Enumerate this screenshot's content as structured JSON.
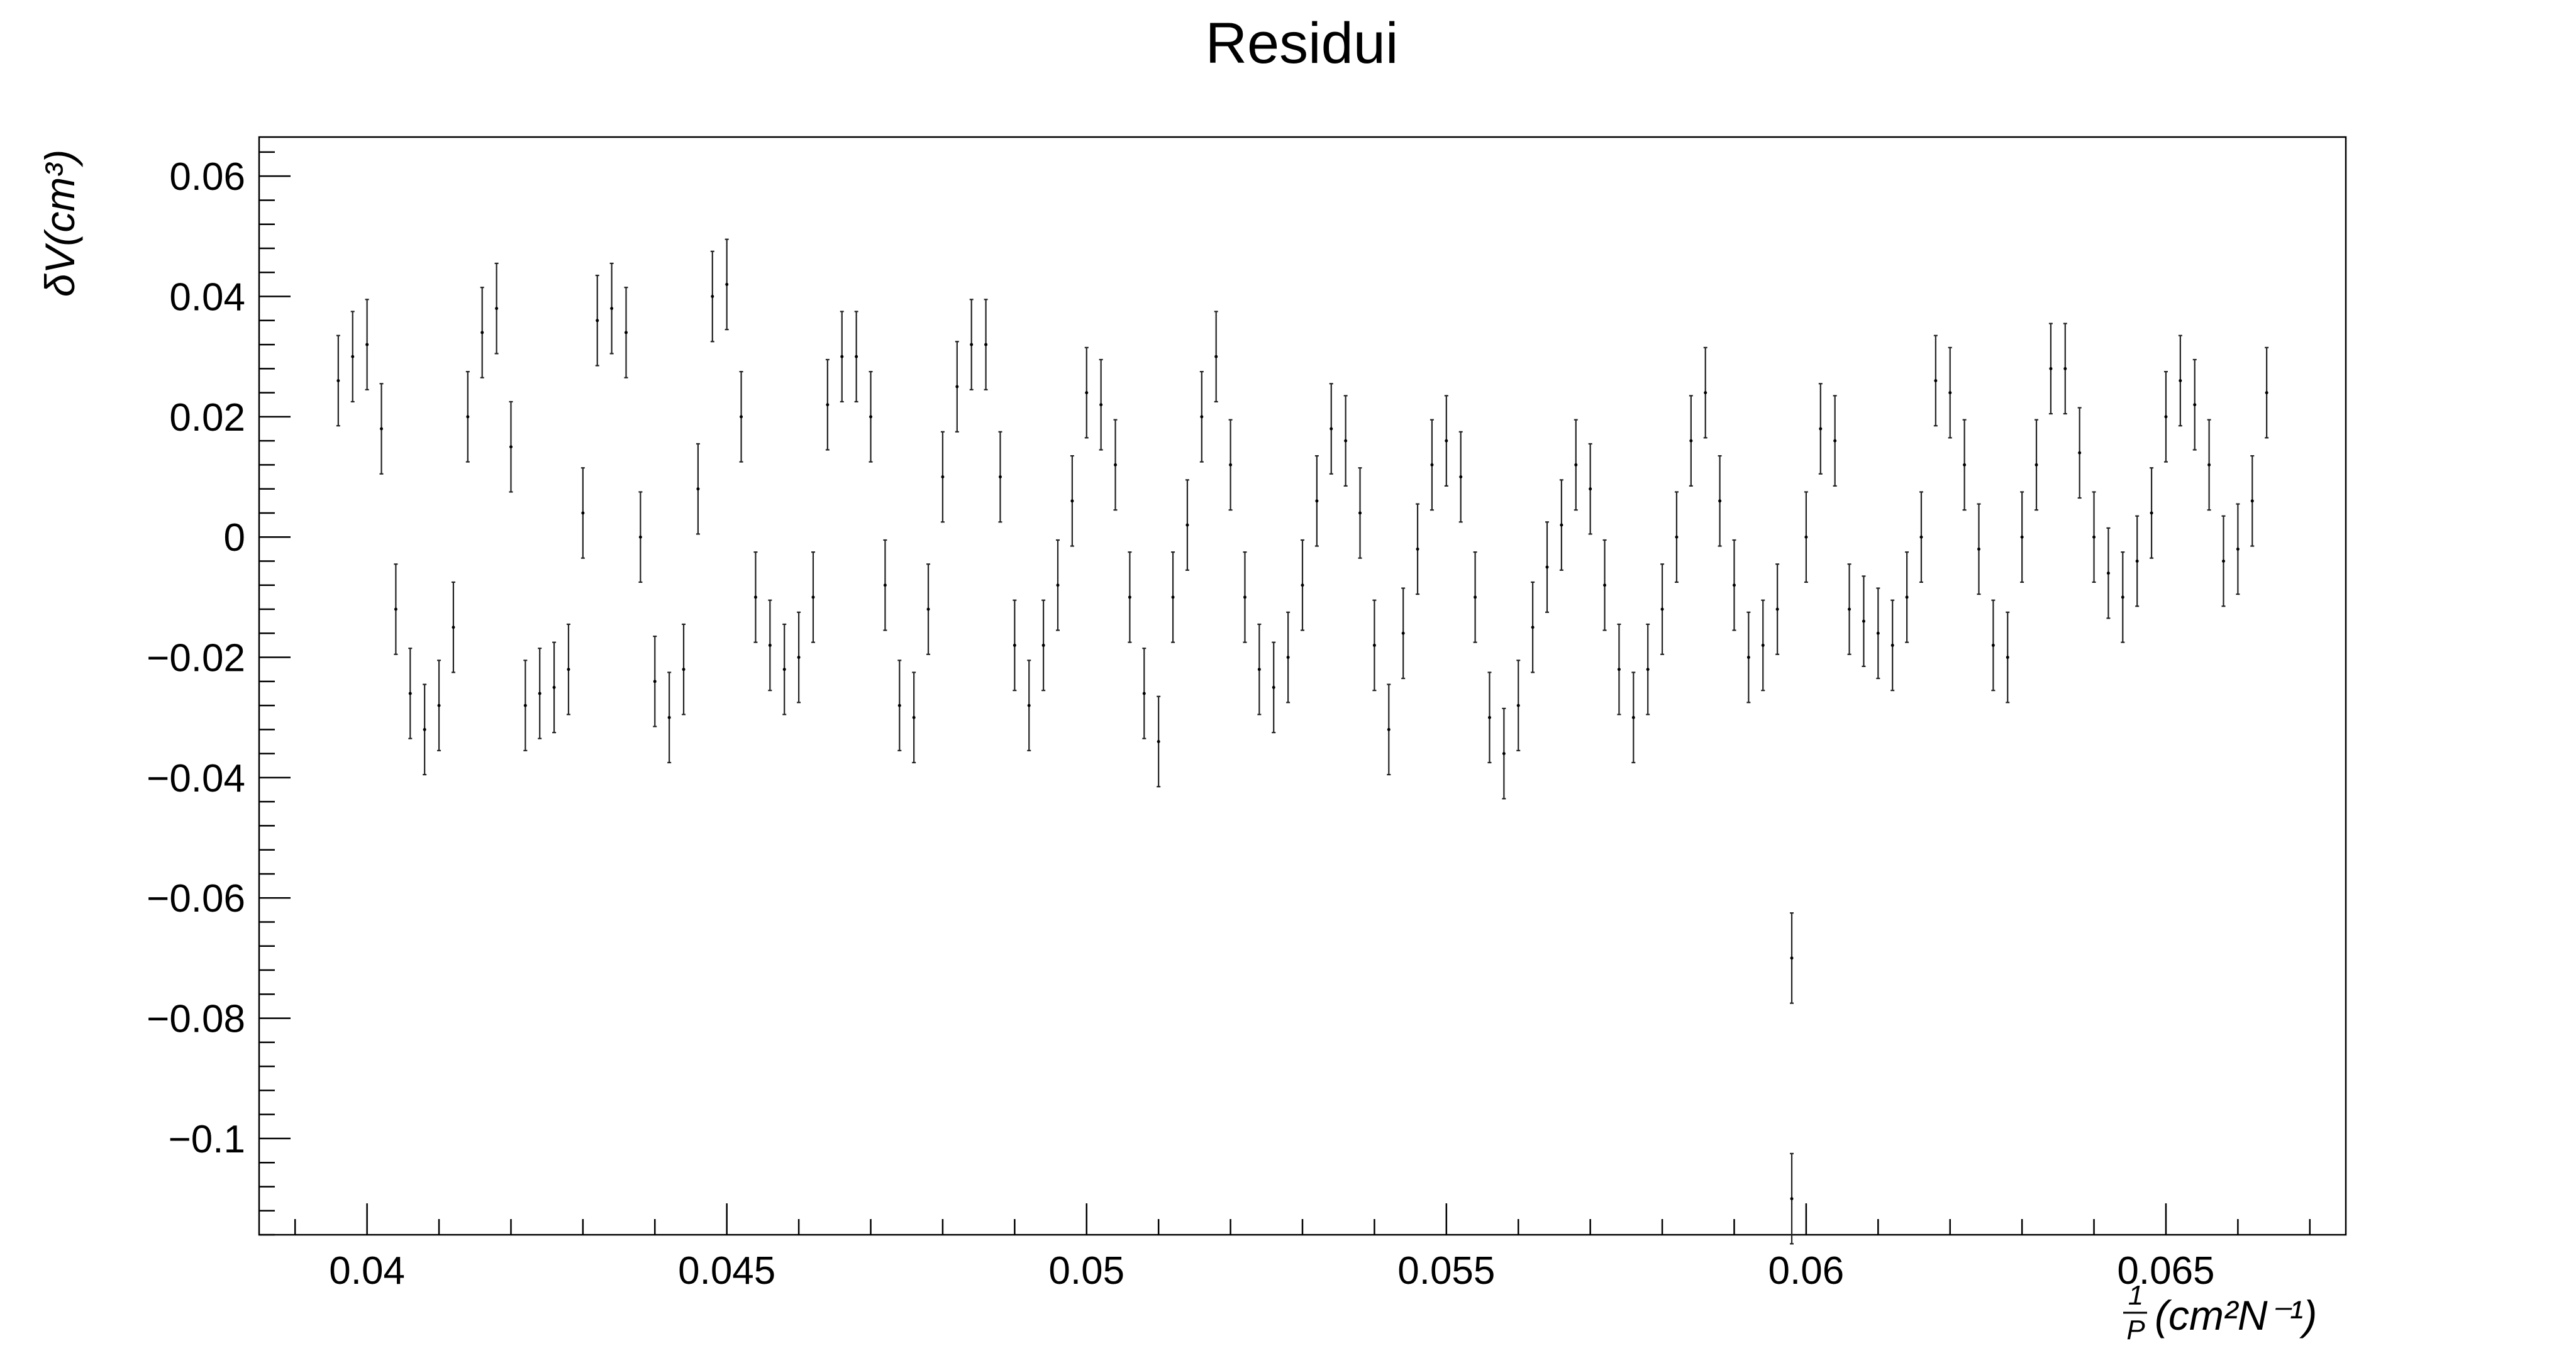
{
  "chart_data": {
    "type": "scatter",
    "title": "Residui",
    "ylabel": "δV(cm³)",
    "xlabel": {
      "frac_num": "1",
      "frac_den": "P",
      "rest": "(cm²N⁻¹)"
    },
    "xlim": [
      0.0385,
      0.0675
    ],
    "ylim": [
      -0.116,
      0.0665
    ],
    "x_ticks": [
      {
        "value": 0.04,
        "label": "0.04"
      },
      {
        "value": 0.045,
        "label": "0.045"
      },
      {
        "value": 0.05,
        "label": "0.05"
      },
      {
        "value": 0.055,
        "label": "0.055"
      },
      {
        "value": 0.06,
        "label": "0.06"
      },
      {
        "value": 0.065,
        "label": "0.065"
      }
    ],
    "y_ticks": [
      {
        "value": 0.06,
        "label": "0.06"
      },
      {
        "value": 0.04,
        "label": "0.04"
      },
      {
        "value": 0.02,
        "label": "0.02"
      },
      {
        "value": 0,
        "label": "0"
      },
      {
        "value": -0.02,
        "label": "−0.02"
      },
      {
        "value": -0.04,
        "label": "−0.04"
      },
      {
        "value": -0.06,
        "label": "−0.06"
      },
      {
        "value": -0.08,
        "label": "−0.08"
      },
      {
        "value": -0.1,
        "label": "−0.1"
      }
    ],
    "error_y": 0.0075,
    "grid": false,
    "series": [
      {
        "points": [
          [
            0.0396,
            0.026
          ],
          [
            0.0398,
            0.03
          ],
          [
            0.04,
            0.032
          ],
          [
            0.0402,
            0.018
          ],
          [
            0.0404,
            -0.012
          ],
          [
            0.0406,
            -0.026
          ],
          [
            0.0408,
            -0.032
          ],
          [
            0.041,
            -0.028
          ],
          [
            0.0412,
            -0.015
          ],
          [
            0.0414,
            0.02
          ],
          [
            0.0416,
            0.034
          ],
          [
            0.0418,
            0.038
          ],
          [
            0.042,
            0.015
          ],
          [
            0.0422,
            -0.028
          ],
          [
            0.0424,
            -0.026
          ],
          [
            0.0426,
            -0.025
          ],
          [
            0.0428,
            -0.022
          ],
          [
            0.043,
            0.004
          ],
          [
            0.0432,
            0.036
          ],
          [
            0.0434,
            0.038
          ],
          [
            0.0436,
            0.034
          ],
          [
            0.0438,
            0.0
          ],
          [
            0.044,
            -0.024
          ],
          [
            0.0442,
            -0.03
          ],
          [
            0.0444,
            -0.022
          ],
          [
            0.0446,
            0.008
          ],
          [
            0.0448,
            0.04
          ],
          [
            0.045,
            0.042
          ],
          [
            0.0452,
            0.02
          ],
          [
            0.0454,
            -0.01
          ],
          [
            0.0456,
            -0.018
          ],
          [
            0.0458,
            -0.022
          ],
          [
            0.046,
            -0.02
          ],
          [
            0.0462,
            -0.01
          ],
          [
            0.0464,
            0.022
          ],
          [
            0.0466,
            0.03
          ],
          [
            0.0468,
            0.03
          ],
          [
            0.047,
            0.02
          ],
          [
            0.0472,
            -0.008
          ],
          [
            0.0474,
            -0.028
          ],
          [
            0.0476,
            -0.03
          ],
          [
            0.0478,
            -0.012
          ],
          [
            0.048,
            0.01
          ],
          [
            0.0482,
            0.025
          ],
          [
            0.0484,
            0.032
          ],
          [
            0.0486,
            0.032
          ],
          [
            0.0488,
            0.01
          ],
          [
            0.049,
            -0.018
          ],
          [
            0.0492,
            -0.028
          ],
          [
            0.0494,
            -0.018
          ],
          [
            0.0496,
            -0.008
          ],
          [
            0.0498,
            0.006
          ],
          [
            0.05,
            0.024
          ],
          [
            0.0502,
            0.022
          ],
          [
            0.0504,
            0.012
          ],
          [
            0.0506,
            -0.01
          ],
          [
            0.0508,
            -0.026
          ],
          [
            0.051,
            -0.034
          ],
          [
            0.0512,
            -0.01
          ],
          [
            0.0514,
            0.002
          ],
          [
            0.0516,
            0.02
          ],
          [
            0.0518,
            0.03
          ],
          [
            0.052,
            0.012
          ],
          [
            0.0522,
            -0.01
          ],
          [
            0.0524,
            -0.022
          ],
          [
            0.0526,
            -0.025
          ],
          [
            0.0528,
            -0.02
          ],
          [
            0.053,
            -0.008
          ],
          [
            0.0532,
            0.006
          ],
          [
            0.0534,
            0.018
          ],
          [
            0.0536,
            0.016
          ],
          [
            0.0538,
            0.004
          ],
          [
            0.054,
            -0.018
          ],
          [
            0.0542,
            -0.032
          ],
          [
            0.0544,
            -0.016
          ],
          [
            0.0546,
            -0.002
          ],
          [
            0.0548,
            0.012
          ],
          [
            0.055,
            0.016
          ],
          [
            0.0552,
            0.01
          ],
          [
            0.0554,
            -0.01
          ],
          [
            0.0556,
            -0.03
          ],
          [
            0.0558,
            -0.036
          ],
          [
            0.056,
            -0.028
          ],
          [
            0.0562,
            -0.015
          ],
          [
            0.0564,
            -0.005
          ],
          [
            0.0566,
            0.002
          ],
          [
            0.0568,
            0.012
          ],
          [
            0.057,
            0.008
          ],
          [
            0.0572,
            -0.008
          ],
          [
            0.0574,
            -0.022
          ],
          [
            0.0576,
            -0.03
          ],
          [
            0.0578,
            -0.022
          ],
          [
            0.058,
            -0.012
          ],
          [
            0.0582,
            0.0
          ],
          [
            0.0584,
            0.016
          ],
          [
            0.0586,
            0.024
          ],
          [
            0.0588,
            0.006
          ],
          [
            0.059,
            -0.008
          ],
          [
            0.0592,
            -0.02
          ],
          [
            0.0594,
            -0.018
          ],
          [
            0.0596,
            -0.012
          ],
          [
            0.0598,
            -0.07
          ],
          [
            0.0598,
            -0.11
          ],
          [
            0.06,
            0.0
          ],
          [
            0.0602,
            0.018
          ],
          [
            0.0604,
            0.016
          ],
          [
            0.0606,
            -0.012
          ],
          [
            0.0608,
            -0.014
          ],
          [
            0.061,
            -0.016
          ],
          [
            0.0612,
            -0.018
          ],
          [
            0.0614,
            -0.01
          ],
          [
            0.0616,
            0.0
          ],
          [
            0.0618,
            0.026
          ],
          [
            0.062,
            0.024
          ],
          [
            0.0622,
            0.012
          ],
          [
            0.0624,
            -0.002
          ],
          [
            0.0626,
            -0.018
          ],
          [
            0.0628,
            -0.02
          ],
          [
            0.063,
            0.0
          ],
          [
            0.0632,
            0.012
          ],
          [
            0.0634,
            0.028
          ],
          [
            0.0636,
            0.028
          ],
          [
            0.0638,
            0.014
          ],
          [
            0.064,
            0.0
          ],
          [
            0.0642,
            -0.006
          ],
          [
            0.0644,
            -0.01
          ],
          [
            0.0646,
            -0.004
          ],
          [
            0.0648,
            0.004
          ],
          [
            0.065,
            0.02
          ],
          [
            0.0652,
            0.026
          ],
          [
            0.0654,
            0.022
          ],
          [
            0.0656,
            0.012
          ],
          [
            0.0658,
            -0.004
          ],
          [
            0.066,
            -0.002
          ],
          [
            0.0662,
            0.006
          ],
          [
            0.0664,
            0.024
          ]
        ]
      }
    ]
  }
}
